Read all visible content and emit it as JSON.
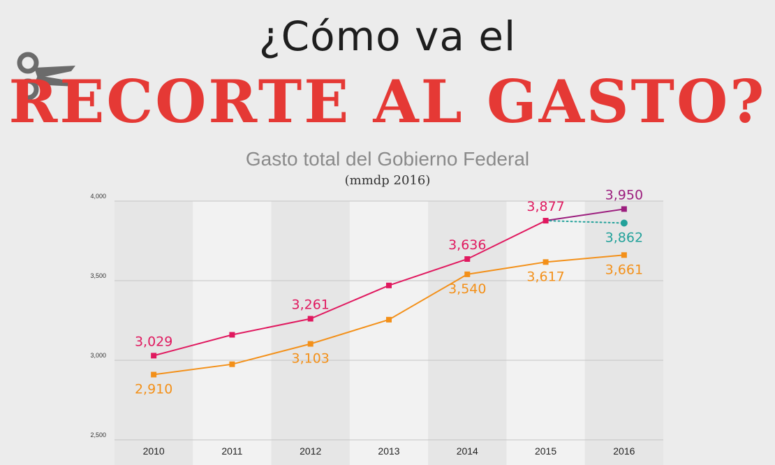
{
  "header": {
    "question": "¿Cómo va el",
    "headline": "RECORTE AL GASTO?"
  },
  "colors": {
    "headline": "#e53935",
    "series_pink": "#e0195f",
    "series_orange": "#f39019",
    "series_purple": "#9c1e7e",
    "series_teal": "#22a19a"
  },
  "icons": {
    "scissors": "scissors-icon"
  },
  "chart_data": {
    "type": "line",
    "title": "Gasto total del Gobierno Federal",
    "subtitle": "(mmdp 2016)",
    "xlabel": "",
    "ylabel": "",
    "ylim": [
      2500,
      4000
    ],
    "yticks": [
      "2,500",
      "3,000",
      "3,500",
      "4,000"
    ],
    "ytick_values": [
      2500,
      3000,
      3500,
      4000
    ],
    "categories": [
      "2010",
      "2011",
      "2012",
      "2013",
      "2014",
      "2015",
      "2016"
    ],
    "grid": true,
    "series": [
      {
        "color": "#e0195f",
        "values": [
          3029,
          3160,
          3261,
          3470,
          3636,
          3877,
          null
        ],
        "labels": [
          "3,029",
          null,
          "3,261",
          null,
          "3,636",
          "3,877",
          null
        ],
        "label_position": "above"
      },
      {
        "color": "#f39019",
        "values": [
          2910,
          2975,
          3103,
          3255,
          3540,
          3617,
          3661
        ],
        "labels": [
          "2,910",
          null,
          "3,103",
          null,
          "3,540",
          "3,617",
          "3,661"
        ],
        "label_position": "below"
      },
      {
        "color": "#9c1e7e",
        "values": [
          null,
          null,
          null,
          null,
          null,
          3877,
          3950
        ],
        "labels": [
          null,
          null,
          null,
          null,
          null,
          null,
          "3,950"
        ],
        "label_position": "above"
      },
      {
        "color": "#22a19a",
        "style": "dotted",
        "marker": "circle",
        "values": [
          null,
          null,
          null,
          null,
          null,
          3877,
          3862
        ],
        "labels": [
          null,
          null,
          null,
          null,
          null,
          null,
          "3,862"
        ],
        "label_position": "below"
      }
    ]
  }
}
